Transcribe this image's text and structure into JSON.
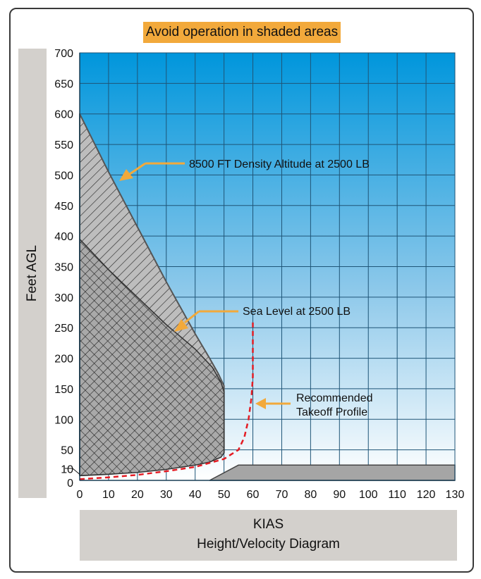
{
  "chart_data": {
    "type": "area",
    "title": "Avoid operation in shaded areas",
    "xlabel": "KIAS",
    "subtitle": "Height/Velocity Diagram",
    "ylabel": "Feet AGL",
    "xlim": [
      0,
      130
    ],
    "ylim": [
      0,
      700
    ],
    "xticks": [
      0,
      10,
      20,
      30,
      40,
      50,
      60,
      70,
      80,
      90,
      100,
      110,
      120,
      130
    ],
    "yticks": [
      0,
      10,
      50,
      100,
      150,
      200,
      250,
      300,
      350,
      400,
      450,
      500,
      550,
      600,
      650,
      700
    ],
    "grid": true,
    "series": [
      {
        "name": "8500 FT Density Altitude at 2500 LB",
        "x": [
          0,
          10,
          20,
          30,
          40,
          45,
          48,
          50,
          50,
          40,
          30,
          20,
          10,
          0
        ],
        "y": [
          600,
          505,
          415,
          325,
          240,
          200,
          175,
          155,
          45,
          30,
          20,
          14,
          10,
          8
        ]
      },
      {
        "name": "Sea Level at 2500 LB",
        "x": [
          0,
          10,
          20,
          30,
          40,
          46,
          49,
          50,
          50,
          49,
          45,
          40,
          30,
          20,
          10,
          0
        ],
        "y": [
          395,
          345,
          300,
          255,
          215,
          185,
          160,
          145,
          45,
          38,
          30,
          25,
          18,
          13,
          10,
          8
        ]
      },
      {
        "name": "Recommended Takeoff Profile",
        "x": [
          0,
          10,
          20,
          30,
          40,
          50,
          55,
          57,
          58.5,
          59.5,
          60,
          60
        ],
        "y": [
          2,
          5,
          9,
          15,
          22,
          35,
          50,
          70,
          100,
          135,
          170,
          260
        ]
      },
      {
        "name": "high-speed region",
        "x": [
          45,
          55,
          130,
          130,
          45
        ],
        "y": [
          0,
          25,
          25,
          0,
          0
        ]
      }
    ],
    "annotations": [
      "8500 FT Density Altitude at 2500 LB",
      "Sea Level at 2500 LB",
      "Recommended\nTakeoff Profile"
    ],
    "colors": {
      "sky_top": "#0096dc",
      "sky_bottom": "#ffffff",
      "hatched_fill": "#b9b9b9",
      "crosshatch_fill": "#a8a8a8",
      "takeoff_profile": "#e41c24",
      "arrow": "#f2a93b",
      "banner": "#f2a93b",
      "label_boxes": "#d3d0cc"
    }
  },
  "labels": {
    "banner": "Avoid operation in shaded areas",
    "y_axis": "Feet AGL",
    "x_axis": "KIAS",
    "caption": "Height/Velocity Diagram",
    "annotation_8500": "8500 FT Density Altitude at 2500 LB",
    "annotation_sea_level": "Sea Level at 2500 LB",
    "annotation_takeoff_line1": "Recommended",
    "annotation_takeoff_line2": "Takeoff Profile"
  }
}
